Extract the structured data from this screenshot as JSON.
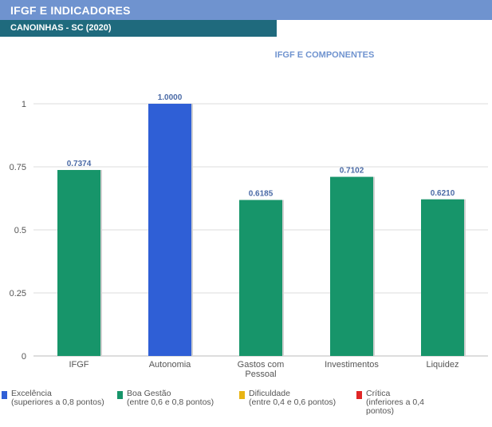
{
  "header": {
    "title": "IFGF E INDICADORES"
  },
  "subheader": {
    "title": "CANOINHAS - SC (2020)"
  },
  "colors": {
    "header_bg": "#6f93cf",
    "subheader_bg": "#1f6a7d",
    "excelencia": "#2f5fd6",
    "boa_gestao": "#17956a",
    "dificuldade": "#e8b414",
    "critica": "#e02626",
    "title_text": "#6f93cf",
    "value_label": "#4a6aa6"
  },
  "chart_data": {
    "type": "bar",
    "title": "IFGF E COMPONENTES",
    "categories": [
      "IFGF",
      "Autonomia",
      "Gastos com Pessoal",
      "Investimentos",
      "Liquidez"
    ],
    "category_lines": [
      [
        "IFGF"
      ],
      [
        "Autonomia"
      ],
      [
        "Gastos com",
        "Pessoal"
      ],
      [
        "Investimentos"
      ],
      [
        "Liquidez"
      ]
    ],
    "values": [
      0.7374,
      1.0,
      0.6185,
      0.7102,
      0.621
    ],
    "value_labels": [
      "0.7374",
      "1.0000",
      "0.6185",
      "0.7102",
      "0.6210"
    ],
    "bar_classes": [
      "boa_gestao",
      "excelencia",
      "boa_gestao",
      "boa_gestao",
      "boa_gestao"
    ],
    "ylim": [
      0,
      1
    ],
    "yticks": [
      0,
      0.25,
      0.5,
      0.75,
      1
    ],
    "ytick_labels": [
      "0",
      "0.25",
      "0.5",
      "0.75",
      "1"
    ],
    "grid": true,
    "legend_position": "bottom"
  },
  "legend": [
    {
      "key": "excelencia",
      "lines": [
        "Excelência",
        "(superiores a 0,8 pontos)"
      ]
    },
    {
      "key": "boa_gestao",
      "lines": [
        "Boa Gestão",
        "(entre 0,6 e 0,8 pontos)"
      ]
    },
    {
      "key": "dificuldade",
      "lines": [
        "Dificuldade",
        "(entre 0,4 e 0,6 pontos)"
      ]
    },
    {
      "key": "critica",
      "lines": [
        "Crítica",
        "(inferiores a 0,4",
        "pontos)"
      ]
    }
  ]
}
